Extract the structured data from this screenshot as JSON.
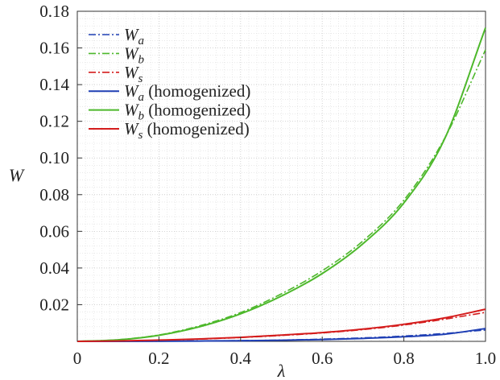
{
  "chart_data": {
    "type": "line",
    "xlabel": "λ",
    "ylabel": "W",
    "xlim": [
      0,
      1.0
    ],
    "ylim": [
      0,
      0.18
    ],
    "grid": true,
    "legend_position": "top-left",
    "x_ticks": [
      0,
      0.2,
      0.4,
      0.6,
      0.8,
      1.0
    ],
    "x_tick_labels": [
      "0",
      "0.2",
      "0.4",
      "0.6",
      "0.8",
      "1.0"
    ],
    "y_ticks": [
      0.02,
      0.04,
      0.06,
      0.08,
      0.1,
      0.12,
      0.14,
      0.16,
      0.18
    ],
    "y_tick_labels": [
      "0.02",
      "0.04",
      "0.06",
      "0.08",
      "0.10",
      "0.12",
      "0.14",
      "0.16",
      "0.18"
    ],
    "x": [
      0,
      0.1,
      0.2,
      0.3,
      0.4,
      0.5,
      0.6,
      0.7,
      0.8,
      0.9,
      1.0
    ],
    "series": [
      {
        "name": "Wa",
        "name_main": "W",
        "name_sub": "a",
        "name_suffix": "",
        "color": "#1f3fb4",
        "style": "dashdot",
        "values": [
          0,
          3e-05,
          0.0001,
          0.0002,
          0.0004,
          0.0007,
          0.0012,
          0.0019,
          0.0029,
          0.0043,
          0.0062
        ]
      },
      {
        "name": "Wb",
        "name_main": "W",
        "name_sub": "b",
        "name_suffix": "",
        "color": "#4db82b",
        "style": "dashdot",
        "values": [
          0,
          0.0009,
          0.0035,
          0.0085,
          0.0157,
          0.0259,
          0.0385,
          0.0548,
          0.077,
          0.1108,
          0.159
        ]
      },
      {
        "name": "Ws",
        "name_main": "W",
        "name_sub": "s",
        "name_suffix": "",
        "color": "#d41c1c",
        "style": "dashdot",
        "values": [
          0,
          0.0002,
          0.0006,
          0.0012,
          0.0021,
          0.0032,
          0.0046,
          0.0064,
          0.0089,
          0.0121,
          0.0158
        ]
      },
      {
        "name": "Wa (homogenized)",
        "name_main": "W",
        "name_sub": "a",
        "name_suffix": " (homogenized)",
        "color": "#1f3fb4",
        "style": "solid",
        "values": [
          0,
          2e-05,
          8e-05,
          0.00018,
          0.00035,
          0.0006,
          0.001,
          0.0016,
          0.0025,
          0.0039,
          0.007
        ]
      },
      {
        "name": "Wb (homogenized)",
        "name_main": "W",
        "name_sub": "b",
        "name_suffix": " (homogenized)",
        "color": "#4db82b",
        "style": "solid",
        "values": [
          0,
          0.0008,
          0.0033,
          0.008,
          0.015,
          0.0247,
          0.037,
          0.0533,
          0.0755,
          0.1105,
          0.171
        ]
      },
      {
        "name": "Ws (homogenized)",
        "name_main": "W",
        "name_sub": "s",
        "name_suffix": " (homogenized)",
        "color": "#d41c1c",
        "style": "solid",
        "values": [
          0,
          0.0002,
          0.0007,
          0.0013,
          0.0022,
          0.0034,
          0.0048,
          0.0067,
          0.0093,
          0.0128,
          0.0175
        ]
      }
    ]
  }
}
